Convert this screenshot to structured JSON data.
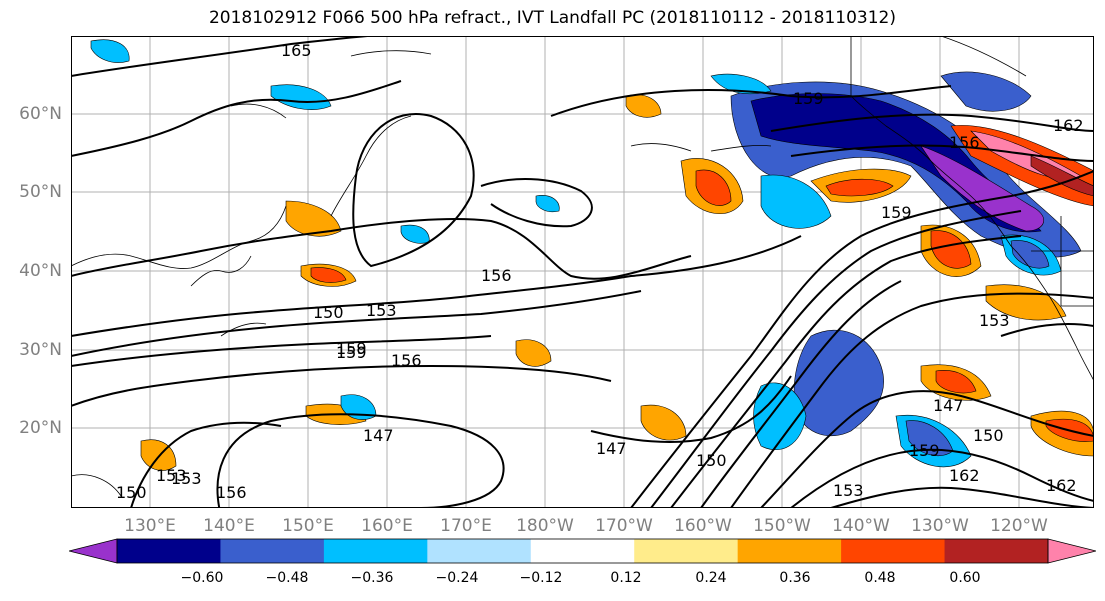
{
  "title": "2018102912 F066 500 hPa refract., IVT Landfall PC (2018110112 - 2018110312)",
  "map": {
    "lat_labels": [
      "60°N",
      "50°N",
      "40°N",
      "30°N",
      "20°N"
    ],
    "lon_labels": [
      "130°E",
      "140°E",
      "150°E",
      "160°E",
      "170°E",
      "180°W",
      "170°W",
      "160°W",
      "150°W",
      "140°W",
      "130°W",
      "120°W"
    ],
    "grid": true,
    "contour_labels": [
      "165",
      "159",
      "156",
      "162",
      "159",
      "156",
      "153",
      "150",
      "159",
      "156",
      "153",
      "147",
      "147",
      "150",
      "159",
      "153",
      "153",
      "147",
      "150",
      "159",
      "162",
      "153",
      "162",
      "150",
      "156"
    ]
  },
  "colorbar": {
    "tick_labels": [
      "−0.60",
      "−0.48",
      "−0.36",
      "−0.24",
      "−0.12",
      "0.12",
      "0.24",
      "0.36",
      "0.48",
      "0.60"
    ],
    "colors": [
      "#9932cc",
      "#00008b",
      "#3a5fcd",
      "#00bfff",
      "#b0e2ff",
      "#ffffff",
      "#ffec8b",
      "#ffa500",
      "#ff4500",
      "#b22222",
      "#ff82ab"
    ],
    "extend": "both"
  }
}
